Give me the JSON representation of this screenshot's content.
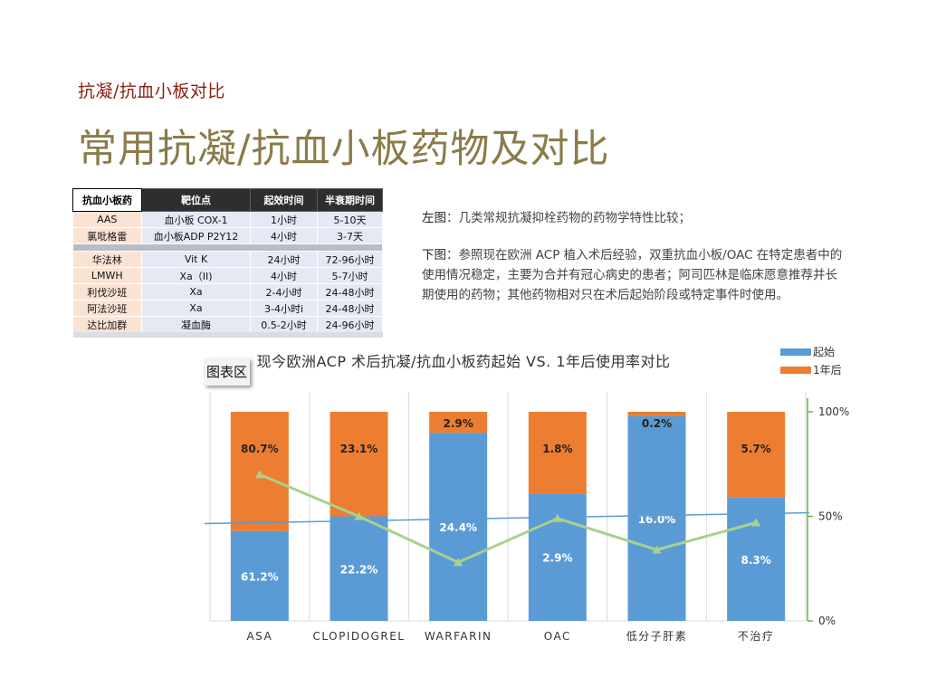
{
  "header": {
    "subtitle": "抗凝/抗血小板对比",
    "title": "常用抗凝/抗血小板药物及对比"
  },
  "drug_table": {
    "headers": [
      "抗血小板药",
      "靶位点",
      "起效时间",
      "半衰期时间"
    ],
    "rows": [
      [
        "AAS",
        "血小板 COX-1",
        "1小时",
        "5-10天"
      ],
      [
        "氯吡格雷",
        "血小板ADP P2Y12",
        "4小时",
        "3-7天"
      ],
      [
        "华法林",
        "Vit K",
        "24小时",
        "72-96小时"
      ],
      [
        "LMWH",
        "Xa（II)",
        "4小时",
        "5-7小时"
      ],
      [
        "利伐沙班",
        "Xa",
        "2-4小时",
        "24-48小时"
      ],
      [
        "阿法沙班",
        "Xa",
        "3-4小时i",
        "24-48小时"
      ],
      [
        "达比加群",
        "凝血酶",
        "0.5-2小时",
        "24-96小时"
      ]
    ]
  },
  "description": {
    "left_label": "左图",
    "left_text": "：几类常规抗凝抑栓药物的药物学特性比较；",
    "bottom_label": "下图",
    "bottom_text": "：参照现在欧洲 ACP 植入术后经验，双重抗血小板/OAC 在特定患者中的使用情况稳定，主要为合并有冠心病史的患者；阿司匹林是临床愿意推荐并长期使用的药物；其他药物相对只在术后起始阶段或特定事件时使用。"
  },
  "chart_tag": "图表区",
  "colors": {
    "start": "#5b9bd5",
    "one_year": "#ed7d31",
    "line": "#a9d18e",
    "blue_line": "#5b9bd5",
    "axis_green": "#70ad47"
  },
  "chart_data": {
    "type": "bar",
    "title": "现今欧洲ACP 术后抗凝/抗血小板药起始 VS. 1年后使用率对比",
    "categories": [
      "ASA",
      "CLOPIDOGREL",
      "WARFARIN",
      "OAC",
      "低分子肝素",
      "不治疗"
    ],
    "series": [
      {
        "name": "起始",
        "values": [
          43,
          50,
          90,
          61,
          98,
          59
        ],
        "labels": [
          "61.2%",
          "22.2%",
          "24.4%",
          "2.9%",
          "16.0%",
          "8.3%"
        ]
      },
      {
        "name": "1年后",
        "values": [
          57,
          50,
          10,
          39,
          2,
          41
        ],
        "labels": [
          "80.7%",
          "23.1%",
          "2.9%",
          "1.8%",
          "0.2%",
          "5.7%"
        ]
      }
    ],
    "line_values": [
      70,
      50,
      28,
      49,
      34,
      47
    ],
    "reference_line": 50,
    "y_ticks": [
      "0%",
      "50%",
      "100%"
    ],
    "ylim": [
      0,
      100
    ]
  }
}
